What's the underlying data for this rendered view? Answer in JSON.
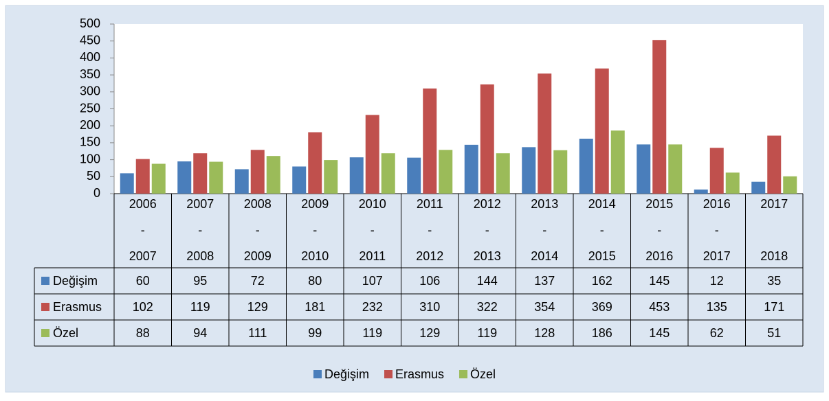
{
  "chart_data": {
    "type": "bar",
    "categories": [
      [
        "2006",
        "-",
        "2007"
      ],
      [
        "2007",
        "-",
        "2008"
      ],
      [
        "2008",
        "-",
        "2009"
      ],
      [
        "2009",
        "-",
        "2010"
      ],
      [
        "2010",
        "-",
        "2011"
      ],
      [
        "2011",
        "-",
        "2012"
      ],
      [
        "2012",
        "-",
        "2013"
      ],
      [
        "2013",
        "-",
        "2014"
      ],
      [
        "2014",
        "-",
        "2015"
      ],
      [
        "2015",
        "-",
        "2016"
      ],
      [
        "2016",
        "-",
        "2017"
      ],
      [
        "2017",
        "2018"
      ]
    ],
    "series": [
      {
        "name": "Değişim",
        "color": "#4a7ebb",
        "values": [
          60,
          95,
          72,
          80,
          107,
          106,
          144,
          137,
          162,
          145,
          12,
          35
        ]
      },
      {
        "name": "Erasmus",
        "color": "#c0504d",
        "values": [
          102,
          119,
          129,
          181,
          232,
          310,
          322,
          354,
          369,
          453,
          135,
          171
        ]
      },
      {
        "name": "Özel",
        "color": "#9bbb59",
        "values": [
          88,
          94,
          111,
          99,
          119,
          129,
          119,
          128,
          186,
          145,
          62,
          51
        ]
      }
    ],
    "ylim": [
      0,
      500
    ],
    "yticks": [
      0,
      50,
      100,
      150,
      200,
      250,
      300,
      350,
      400,
      450,
      500
    ],
    "data_table": true,
    "legend": "bottom"
  }
}
